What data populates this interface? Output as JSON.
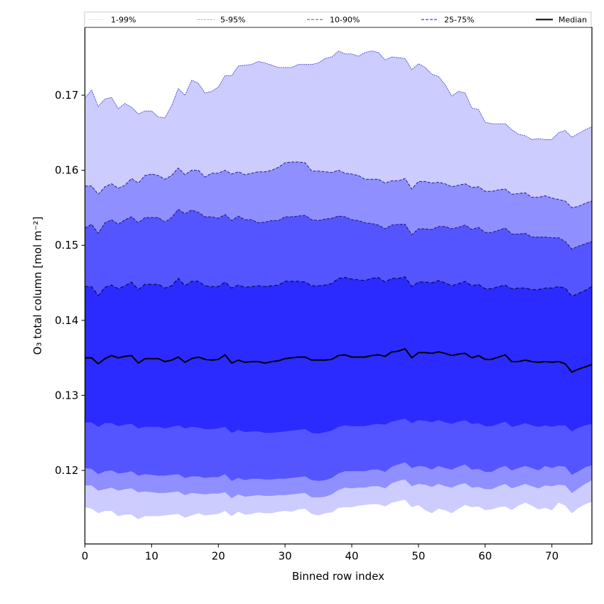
{
  "chart_data": {
    "type": "area",
    "title": "",
    "xlabel": "Binned row index",
    "ylabel": "O₃ total column [mol m⁻²]",
    "xlim": [
      0,
      76
    ],
    "ylim": [
      0.1105,
      0.179
    ],
    "xticks": [
      0,
      10,
      20,
      30,
      40,
      50,
      60,
      70
    ],
    "xtick_labels": [
      "0",
      "10",
      "20",
      "30",
      "40",
      "50",
      "60",
      "70"
    ],
    "yticks": [
      0.12,
      0.13,
      0.14,
      0.15,
      0.16,
      0.17
    ],
    "ytick_labels": [
      "0.12",
      "0.13",
      "0.14",
      "0.15",
      "0.16",
      "0.17"
    ],
    "grid": false,
    "legend": {
      "placement": "top (above plot, single row)",
      "entries": [
        {
          "label": "1-99%",
          "style": "dotted",
          "color": "#c8c8f8"
        },
        {
          "label": "5-95%",
          "style": "dashed",
          "color": "#8c8cf0"
        },
        {
          "label": "10-90%",
          "style": "dashed",
          "color": "#6e6ef0"
        },
        {
          "label": "25-75%",
          "style": "dashed",
          "color": "#5a5af0"
        },
        {
          "label": "Median",
          "style": "solid",
          "color": "#000000"
        }
      ]
    },
    "band_colors": {
      "1-99%": "#ccccff",
      "5-95%": "#8f8fff",
      "10-90%": "#5555ff",
      "25-75%": "#2b2bff"
    },
    "x": [
      0,
      1,
      2,
      3,
      4,
      5,
      6,
      7,
      8,
      9,
      10,
      11,
      12,
      13,
      14,
      15,
      16,
      17,
      18,
      19,
      20,
      21,
      22,
      23,
      24,
      25,
      26,
      27,
      28,
      29,
      30,
      31,
      32,
      33,
      34,
      35,
      36,
      37,
      38,
      39,
      40,
      41,
      42,
      43,
      44,
      45,
      46,
      47,
      48,
      49,
      50,
      51,
      52,
      53,
      54,
      55,
      56,
      57,
      58,
      59,
      60,
      61,
      62,
      63,
      64,
      65,
      66,
      67,
      68,
      69,
      70,
      71,
      72,
      73,
      74,
      75,
      76
    ],
    "series": [
      {
        "name": "p99",
        "values": [
          0.1696,
          0.1707,
          0.1685,
          0.1695,
          0.1697,
          0.1682,
          0.1689,
          0.1684,
          0.1675,
          0.1679,
          0.1679,
          0.1671,
          0.167,
          0.1686,
          0.1709,
          0.17,
          0.172,
          0.1716,
          0.1703,
          0.1705,
          0.1711,
          0.1726,
          0.1726,
          0.1739,
          0.174,
          0.1741,
          0.1745,
          0.1743,
          0.174,
          0.1737,
          0.1737,
          0.1737,
          0.1741,
          0.1741,
          0.1741,
          0.1743,
          0.1749,
          0.1751,
          0.1759,
          0.1755,
          0.1755,
          0.1752,
          0.1757,
          0.1759,
          0.1757,
          0.1747,
          0.1751,
          0.175,
          0.1749,
          0.1734,
          0.1742,
          0.1737,
          0.1728,
          0.1725,
          0.1714,
          0.1699,
          0.1705,
          0.1703,
          0.1683,
          0.1681,
          0.1664,
          0.1662,
          0.1662,
          0.1662,
          0.1654,
          0.1648,
          0.1646,
          0.1641,
          0.1642,
          0.1641,
          0.1641,
          0.165,
          0.1653,
          0.1644,
          0.1649,
          0.1654,
          0.1658
        ]
      },
      {
        "name": "p95",
        "values": [
          0.1579,
          0.1579,
          0.1568,
          0.1578,
          0.1582,
          0.1576,
          0.158,
          0.1589,
          0.1583,
          0.1593,
          0.1595,
          0.1593,
          0.1588,
          0.1593,
          0.1603,
          0.1594,
          0.16,
          0.16,
          0.1591,
          0.1596,
          0.1596,
          0.16,
          0.1595,
          0.1598,
          0.1594,
          0.1596,
          0.1598,
          0.1598,
          0.16,
          0.1604,
          0.161,
          0.1611,
          0.1611,
          0.161,
          0.1599,
          0.1599,
          0.1598,
          0.1597,
          0.16,
          0.1596,
          0.1595,
          0.1593,
          0.1588,
          0.1588,
          0.1588,
          0.1583,
          0.1586,
          0.1586,
          0.1589,
          0.1575,
          0.1585,
          0.1585,
          0.1583,
          0.1584,
          0.1582,
          0.1578,
          0.158,
          0.1582,
          0.1577,
          0.1578,
          0.1572,
          0.1572,
          0.1574,
          0.1575,
          0.1568,
          0.1569,
          0.157,
          0.1564,
          0.1564,
          0.1566,
          0.1563,
          0.1561,
          0.1559,
          0.155,
          0.1552,
          0.1556,
          0.1559
        ]
      },
      {
        "name": "p90",
        "values": [
          0.1523,
          0.1528,
          0.1516,
          0.153,
          0.1534,
          0.1528,
          0.1534,
          0.1538,
          0.153,
          0.1537,
          0.1537,
          0.1537,
          0.1531,
          0.1537,
          0.1548,
          0.1542,
          0.1547,
          0.1544,
          0.1538,
          0.1538,
          0.1536,
          0.1541,
          0.1533,
          0.1539,
          0.1534,
          0.1534,
          0.153,
          0.1531,
          0.1533,
          0.1533,
          0.1538,
          0.1538,
          0.1539,
          0.154,
          0.1534,
          0.1533,
          0.1535,
          0.1536,
          0.1539,
          0.1538,
          0.1534,
          0.1533,
          0.153,
          0.1529,
          0.1527,
          0.1522,
          0.1527,
          0.1528,
          0.1528,
          0.1514,
          0.1522,
          0.1522,
          0.1521,
          0.1525,
          0.1525,
          0.1522,
          0.1524,
          0.1527,
          0.1521,
          0.1524,
          0.1517,
          0.1517,
          0.152,
          0.1523,
          0.1515,
          0.1515,
          0.1516,
          0.1511,
          0.1511,
          0.1511,
          0.151,
          0.151,
          0.1505,
          0.1495,
          0.1499,
          0.1502,
          0.1505
        ]
      },
      {
        "name": "p75",
        "values": [
          0.1445,
          0.1445,
          0.1433,
          0.1444,
          0.1447,
          0.1442,
          0.1446,
          0.1451,
          0.1441,
          0.1448,
          0.1448,
          0.1448,
          0.1443,
          0.1446,
          0.1456,
          0.1446,
          0.1452,
          0.1452,
          0.1446,
          0.1445,
          0.1445,
          0.1451,
          0.1443,
          0.1447,
          0.1444,
          0.1445,
          0.1446,
          0.1445,
          0.1446,
          0.1447,
          0.1452,
          0.1452,
          0.1452,
          0.1451,
          0.1446,
          0.1446,
          0.1447,
          0.1449,
          0.1456,
          0.1457,
          0.1455,
          0.1454,
          0.1453,
          0.1456,
          0.1457,
          0.1451,
          0.1456,
          0.1456,
          0.1458,
          0.1445,
          0.1451,
          0.1451,
          0.145,
          0.1453,
          0.145,
          0.1446,
          0.1449,
          0.1452,
          0.1446,
          0.1448,
          0.1442,
          0.1442,
          0.1445,
          0.1447,
          0.1442,
          0.1443,
          0.1443,
          0.1441,
          0.1441,
          0.1443,
          0.1443,
          0.1445,
          0.1443,
          0.1432,
          0.1436,
          0.144,
          0.1445
        ]
      },
      {
        "name": "median",
        "values": [
          0.135,
          0.135,
          0.1342,
          0.1349,
          0.1353,
          0.135,
          0.1352,
          0.1353,
          0.1343,
          0.1349,
          0.1349,
          0.1349,
          0.1345,
          0.1347,
          0.1351,
          0.1344,
          0.1349,
          0.1351,
          0.1348,
          0.1347,
          0.1348,
          0.1354,
          0.1343,
          0.1347,
          0.1344,
          0.1345,
          0.1345,
          0.1343,
          0.1345,
          0.1346,
          0.1349,
          0.135,
          0.1351,
          0.1351,
          0.1347,
          0.1347,
          0.1347,
          0.1348,
          0.1353,
          0.1354,
          0.1351,
          0.1351,
          0.1351,
          0.1353,
          0.1354,
          0.1352,
          0.1358,
          0.1359,
          0.1362,
          0.135,
          0.1357,
          0.1357,
          0.1356,
          0.1358,
          0.1356,
          0.1353,
          0.1355,
          0.1356,
          0.135,
          0.1353,
          0.1348,
          0.1348,
          0.1351,
          0.1354,
          0.1345,
          0.1345,
          0.1347,
          0.1345,
          0.1344,
          0.1345,
          0.1344,
          0.1345,
          0.1342,
          0.1331,
          0.1335,
          0.1338,
          0.1341
        ]
      },
      {
        "name": "p25",
        "values": [
          0.1264,
          0.1264,
          0.1258,
          0.1263,
          0.1263,
          0.1259,
          0.1261,
          0.1262,
          0.1256,
          0.1258,
          0.1258,
          0.1258,
          0.1256,
          0.1258,
          0.126,
          0.1256,
          0.1258,
          0.1257,
          0.1255,
          0.1255,
          0.1256,
          0.1258,
          0.125,
          0.1254,
          0.1251,
          0.1252,
          0.1252,
          0.125,
          0.125,
          0.1251,
          0.1252,
          0.1253,
          0.1254,
          0.1255,
          0.125,
          0.1249,
          0.1251,
          0.1253,
          0.1258,
          0.126,
          0.1259,
          0.1259,
          0.1259,
          0.1261,
          0.1262,
          0.1261,
          0.1265,
          0.1267,
          0.1269,
          0.1263,
          0.1267,
          0.1266,
          0.1264,
          0.1267,
          0.1264,
          0.1262,
          0.1265,
          0.1267,
          0.1262,
          0.1263,
          0.1259,
          0.1259,
          0.1262,
          0.1265,
          0.1258,
          0.126,
          0.1263,
          0.126,
          0.1258,
          0.126,
          0.1258,
          0.126,
          0.126,
          0.1252,
          0.1257,
          0.126,
          0.1262
        ]
      },
      {
        "name": "p10",
        "values": [
          0.1203,
          0.1202,
          0.1195,
          0.1199,
          0.12,
          0.1196,
          0.1197,
          0.1199,
          0.1193,
          0.1195,
          0.1194,
          0.1193,
          0.1193,
          0.1194,
          0.1195,
          0.119,
          0.1192,
          0.1192,
          0.119,
          0.1191,
          0.1191,
          0.1195,
          0.1186,
          0.119,
          0.1187,
          0.1189,
          0.1189,
          0.1188,
          0.1188,
          0.1189,
          0.1189,
          0.119,
          0.1191,
          0.1192,
          0.1187,
          0.1186,
          0.1187,
          0.119,
          0.1196,
          0.1199,
          0.1199,
          0.1199,
          0.1199,
          0.1201,
          0.1201,
          0.1198,
          0.1205,
          0.1208,
          0.1211,
          0.1203,
          0.1206,
          0.1205,
          0.1201,
          0.1206,
          0.1203,
          0.1201,
          0.1205,
          0.1208,
          0.1201,
          0.1202,
          0.1198,
          0.1198,
          0.1203,
          0.1206,
          0.12,
          0.1203,
          0.1206,
          0.1203,
          0.12,
          0.1206,
          0.1203,
          0.1206,
          0.1205,
          0.1194,
          0.1199,
          0.1204,
          0.1207
        ]
      },
      {
        "name": "p5",
        "values": [
          0.118,
          0.118,
          0.1173,
          0.1175,
          0.1177,
          0.1173,
          0.1175,
          0.1176,
          0.1171,
          0.1172,
          0.1171,
          0.117,
          0.117,
          0.1171,
          0.1172,
          0.1167,
          0.117,
          0.1169,
          0.1168,
          0.1169,
          0.1169,
          0.1171,
          0.1163,
          0.1168,
          0.1165,
          0.1166,
          0.1167,
          0.1166,
          0.1166,
          0.1167,
          0.1167,
          0.1168,
          0.1169,
          0.117,
          0.1164,
          0.1164,
          0.1165,
          0.1168,
          0.1174,
          0.1177,
          0.1176,
          0.1177,
          0.1177,
          0.1179,
          0.1179,
          0.1176,
          0.1183,
          0.1186,
          0.1188,
          0.1179,
          0.1182,
          0.1181,
          0.1178,
          0.1182,
          0.1179,
          0.1177,
          0.1181,
          0.1183,
          0.1177,
          0.1178,
          0.1175,
          0.1175,
          0.1179,
          0.1182,
          0.1176,
          0.1179,
          0.1182,
          0.1179,
          0.1176,
          0.118,
          0.1179,
          0.1181,
          0.118,
          0.117,
          0.1176,
          0.1182,
          0.1187
        ]
      },
      {
        "name": "p1",
        "values": [
          0.1151,
          0.1149,
          0.1143,
          0.1146,
          0.1146,
          0.1139,
          0.1141,
          0.1141,
          0.1135,
          0.1139,
          0.1139,
          0.1139,
          0.114,
          0.1141,
          0.1142,
          0.1137,
          0.114,
          0.1143,
          0.114,
          0.1141,
          0.1142,
          0.1146,
          0.1139,
          0.1145,
          0.1141,
          0.1142,
          0.1144,
          0.1143,
          0.1143,
          0.1145,
          0.1146,
          0.1145,
          0.1148,
          0.1149,
          0.1142,
          0.114,
          0.1143,
          0.1144,
          0.115,
          0.1151,
          0.1151,
          0.1153,
          0.1154,
          0.1155,
          0.1155,
          0.1152,
          0.1157,
          0.1159,
          0.1161,
          0.1151,
          0.1154,
          0.1147,
          0.1143,
          0.1149,
          0.1147,
          0.1143,
          0.1149,
          0.1154,
          0.1151,
          0.1152,
          0.1147,
          0.1148,
          0.1151,
          0.1152,
          0.1147,
          0.1153,
          0.1157,
          0.1153,
          0.1148,
          0.115,
          0.1147,
          0.1157,
          0.1153,
          0.1143,
          0.115,
          0.1155,
          0.1158
        ]
      }
    ]
  }
}
